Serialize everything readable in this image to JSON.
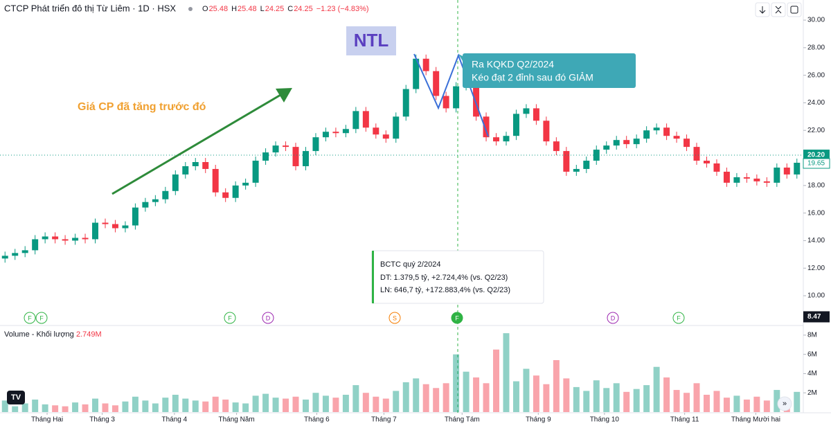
{
  "chart_data": {
    "type": "candlestick",
    "title": "CTCP Phát triển đô thị Từ Liêm · 1D · HSX",
    "legend": [
      {
        "label": "O",
        "value": "25.48"
      },
      {
        "label": "H",
        "value": "25.48"
      },
      {
        "label": "L",
        "value": "24.25"
      },
      {
        "label": "C",
        "value": "24.25"
      }
    ],
    "change": "−1.23 (−4.83%)",
    "up_color": "#089981",
    "down_color": "#f23645",
    "open": [
      12.7,
      12.9,
      13.1,
      13.3,
      14.1,
      14.3,
      14.1,
      14.0,
      14.2,
      14.1,
      15.3,
      15.2,
      14.9,
      15.1,
      16.4,
      16.8,
      17.0,
      17.6,
      18.8,
      19.4,
      19.7,
      19.2,
      17.5,
      17.1,
      18.0,
      18.2,
      19.8,
      20.4,
      20.9,
      20.8,
      19.4,
      20.5,
      21.5,
      21.9,
      21.8,
      22.1,
      23.4,
      22.2,
      21.7,
      21.4,
      23.0,
      25.0,
      27.2,
      26.3,
      24.5,
      23.6,
      25.2,
      25.5,
      23.0,
      21.5,
      21.2,
      21.6,
      23.2,
      23.6,
      22.7,
      21.2,
      20.5,
      19.0,
      19.2,
      19.8,
      20.6,
      20.9,
      21.3,
      21.0,
      21.4,
      22.0,
      22.2,
      21.6,
      21.4,
      20.8,
      19.8,
      19.6,
      19.0,
      18.2,
      18.6,
      18.5,
      18.3,
      18.2,
      19.3,
      18.8
    ],
    "high": [
      13.2,
      13.4,
      13.6,
      14.4,
      14.6,
      14.6,
      14.4,
      14.5,
      14.5,
      15.6,
      15.6,
      15.5,
      15.4,
      16.7,
      17.1,
      17.3,
      17.9,
      19.1,
      19.7,
      20.0,
      20.0,
      19.5,
      17.8,
      18.3,
      18.5,
      20.1,
      20.7,
      21.2,
      21.2,
      21.1,
      20.8,
      21.8,
      22.2,
      22.2,
      22.4,
      23.7,
      23.7,
      22.5,
      22.0,
      23.3,
      25.3,
      27.5,
      27.5,
      26.6,
      24.8,
      25.5,
      27.3,
      25.8,
      23.3,
      21.8,
      21.9,
      23.5,
      23.9,
      23.9,
      23.0,
      21.5,
      20.8,
      19.5,
      20.1,
      20.9,
      21.2,
      21.6,
      21.6,
      21.7,
      22.3,
      22.5,
      22.5,
      21.9,
      21.7,
      21.1,
      20.1,
      19.9,
      19.3,
      18.9,
      18.9,
      18.8,
      18.6,
      19.6,
      19.6,
      19.95
    ],
    "low": [
      12.4,
      12.6,
      12.8,
      13.0,
      13.8,
      13.8,
      13.7,
      13.7,
      13.8,
      13.8,
      14.9,
      14.6,
      14.6,
      14.8,
      16.1,
      16.5,
      16.7,
      17.3,
      18.5,
      19.1,
      18.9,
      17.2,
      16.8,
      16.8,
      17.7,
      17.9,
      19.5,
      20.1,
      20.5,
      19.1,
      19.1,
      20.2,
      21.2,
      21.5,
      21.5,
      21.8,
      21.9,
      21.4,
      21.1,
      21.1,
      22.7,
      24.7,
      26.0,
      24.2,
      23.3,
      23.3,
      24.9,
      22.7,
      21.2,
      20.9,
      20.9,
      21.3,
      22.9,
      22.4,
      20.9,
      20.2,
      18.7,
      18.7,
      18.9,
      19.5,
      20.3,
      20.6,
      20.7,
      20.7,
      21.1,
      21.7,
      21.3,
      21.1,
      20.5,
      19.5,
      19.3,
      18.7,
      17.9,
      17.9,
      18.2,
      18.0,
      17.9,
      17.9,
      18.5,
      18.5
    ],
    "close": [
      12.9,
      13.1,
      13.3,
      14.1,
      14.3,
      14.1,
      14.0,
      14.2,
      14.1,
      15.3,
      15.2,
      14.9,
      15.1,
      16.4,
      16.8,
      17.0,
      17.6,
      18.8,
      19.4,
      19.7,
      19.2,
      17.5,
      17.1,
      18.0,
      18.2,
      19.8,
      20.4,
      20.9,
      20.8,
      19.4,
      20.5,
      21.5,
      21.9,
      21.8,
      22.1,
      23.4,
      22.2,
      21.7,
      21.4,
      23.0,
      25.0,
      27.2,
      26.3,
      24.5,
      23.6,
      25.2,
      25.5,
      23.0,
      21.5,
      21.2,
      21.6,
      23.2,
      23.6,
      22.7,
      21.2,
      20.5,
      19.0,
      19.2,
      19.8,
      20.6,
      20.9,
      21.3,
      21.0,
      21.4,
      22.0,
      22.2,
      21.6,
      21.4,
      20.8,
      19.8,
      19.6,
      19.0,
      18.2,
      18.6,
      18.5,
      18.3,
      18.2,
      19.3,
      18.8,
      19.65
    ],
    "xlim": [
      -0.5,
      79.5
    ],
    "xticks": [
      {
        "value": 4.2,
        "label": "Tháng Hai"
      },
      {
        "value": 9.7,
        "label": "Tháng 3"
      },
      {
        "value": 16.9,
        "label": "Tháng 4"
      },
      {
        "value": 23.1,
        "label": "Tháng Năm"
      },
      {
        "value": 31.1,
        "label": "Tháng 6"
      },
      {
        "value": 37.8,
        "label": "Tháng 7"
      },
      {
        "value": 45.6,
        "label": "Tháng Tám"
      },
      {
        "value": 53.2,
        "label": "Tháng 9"
      },
      {
        "value": 59.8,
        "label": "Tháng 10"
      },
      {
        "value": 67.8,
        "label": "Tháng 11"
      },
      {
        "value": 74.9,
        "label": "Tháng Mười hai"
      }
    ],
    "ylim": [
      7.84,
      31.46
    ],
    "yticks": [
      {
        "value": 10,
        "label": "10.00"
      },
      {
        "value": 12,
        "label": "12.00"
      },
      {
        "value": 14,
        "label": "14.00"
      },
      {
        "value": 16,
        "label": "16.00"
      },
      {
        "value": 18,
        "label": "18.00"
      },
      {
        "value": 20,
        "label": "20.00"
      },
      {
        "value": 22,
        "label": "22.00"
      },
      {
        "value": 24,
        "label": "24.00"
      },
      {
        "value": 26,
        "label": "26.00"
      },
      {
        "value": 28,
        "label": "28.00"
      },
      {
        "value": 30,
        "label": "30.00"
      }
    ],
    "crosshair_price": {
      "value": 20.2,
      "label": "20.20"
    },
    "cursor_price": 8.47,
    "volume": {
      "name": "Volume - Khối lượng",
      "last": "2.749M",
      "values": [
        1.2,
        0.6,
        0.9,
        1.3,
        0.8,
        0.7,
        0.6,
        1.0,
        0.8,
        1.4,
        0.9,
        0.7,
        1.1,
        1.6,
        1.2,
        0.9,
        1.5,
        1.8,
        1.4,
        1.2,
        1.1,
        1.6,
        1.3,
        1.0,
        0.9,
        1.7,
        1.9,
        1.5,
        1.4,
        1.6,
        1.3,
        2.0,
        1.7,
        1.5,
        1.8,
        2.8,
        2.0,
        1.6,
        1.4,
        2.2,
        3.1,
        3.5,
        2.9,
        2.5,
        3.0,
        6.0,
        4.2,
        3.6,
        3.0,
        6.5,
        8.2,
        3.2,
        4.5,
        3.8,
        2.9,
        5.4,
        3.5,
        2.6,
        2.2,
        3.3,
        2.5,
        3.0,
        2.1,
        2.4,
        2.8,
        4.7,
        3.6,
        2.3,
        2.0,
        3.0,
        1.8,
        2.2,
        1.5,
        1.7,
        1.3,
        1.6,
        1.2,
        2.3,
        1.4,
        2.1
      ],
      "ylim": [
        0,
        9
      ],
      "yticks": [
        {
          "value": 2,
          "label": "2M"
        },
        {
          "value": 4,
          "label": "4M"
        },
        {
          "value": 6,
          "label": "6M"
        },
        {
          "value": 8,
          "label": "8M"
        }
      ]
    },
    "events": [
      "F",
      "F",
      "F",
      "D",
      "S",
      "F",
      "D",
      "F"
    ],
    "annotations": {
      "ticker": "NTL",
      "rise": "Giá CP đã tăng trước đó",
      "callout": [
        "Ra KQKD Q2/2024",
        "Kéo đạt 2 đỉnh sau đó GIẢM"
      ],
      "tooltip": [
        "BCTC quý 2/2024",
        "DT: 1.379,5 tỷ, +2.724,4% (vs. Q2/23)",
        "LN: 646,7 tỷ, +172.883,4% (vs. Q2/23)"
      ]
    }
  }
}
